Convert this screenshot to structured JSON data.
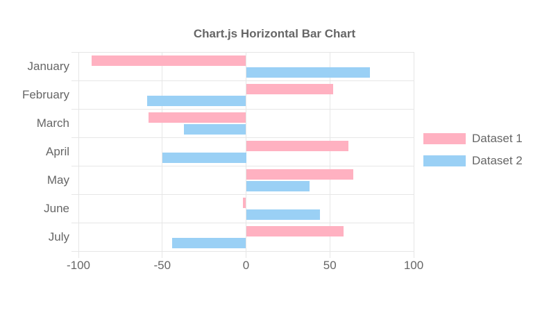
{
  "title": "Chart.js Horizontal Bar Chart",
  "chart_data": {
    "type": "bar",
    "orientation": "horizontal",
    "title": "Chart.js Horizontal Bar Chart",
    "categories": [
      "January",
      "February",
      "March",
      "April",
      "May",
      "June",
      "July"
    ],
    "series": [
      {
        "name": "Dataset 1",
        "color": "#FFB1C1",
        "values": [
          -92,
          52,
          -58,
          61,
          64,
          -2,
          58
        ]
      },
      {
        "name": "Dataset 2",
        "color": "#9AD0F5",
        "values": [
          74,
          -59,
          -37,
          -50,
          38,
          44,
          -44
        ]
      }
    ],
    "xlim": [
      -100,
      100
    ],
    "x_ticks": [
      -100,
      -50,
      0,
      50,
      100
    ],
    "x_tick_labels": [
      "-100",
      "-50",
      "0",
      "50",
      "100"
    ],
    "grid": true,
    "legend_position": "right",
    "colors": {
      "text": "#666666",
      "grid": "#E6E6E6",
      "background": "#FFFFFF"
    }
  }
}
